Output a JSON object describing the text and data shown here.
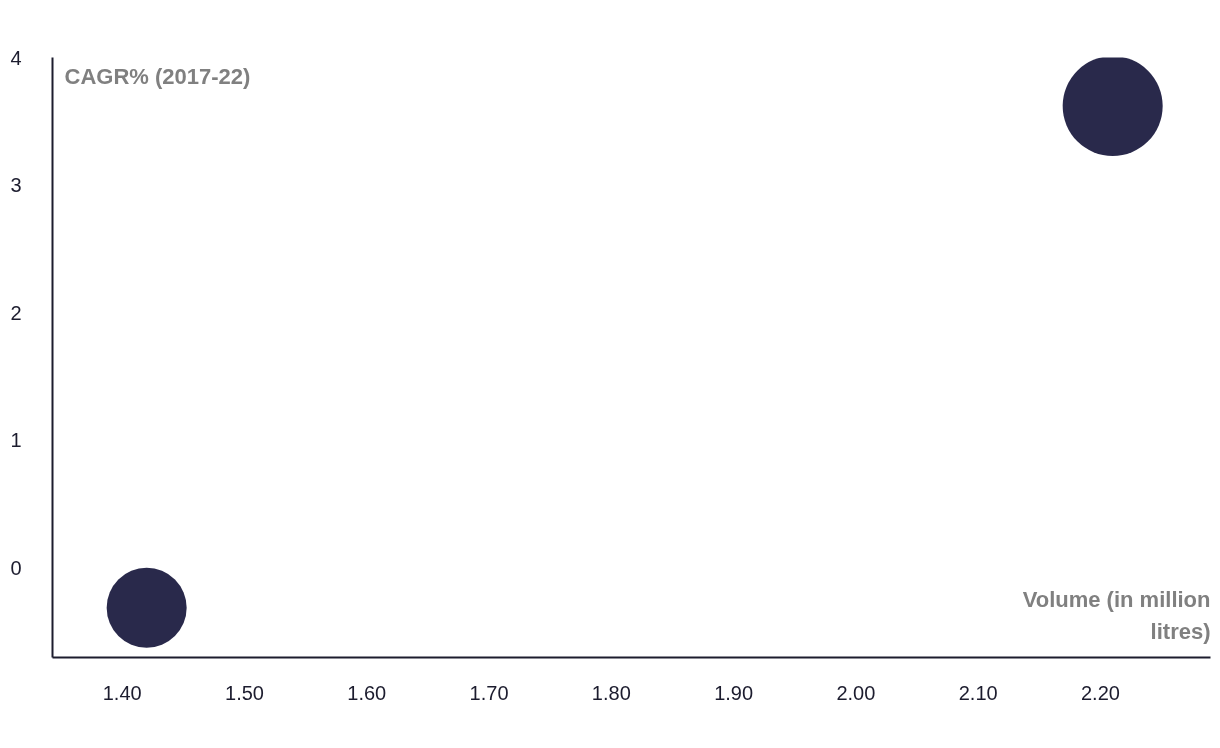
{
  "chart_data": {
    "type": "bubble",
    "xlabel": "Volume (in million litres)",
    "ylabel": "CAGR% (2017-22)",
    "x": [
      1.42,
      2.21
    ],
    "values": [
      -0.31,
      3.62
    ],
    "sizes": [
      0.64,
      1
    ],
    "color": "#29294b",
    "marker": "circle",
    "xlim": [
      1.343,
      2.29
    ],
    "ylim": [
      -0.7,
      4
    ],
    "xticks": [
      {
        "value": 1.4,
        "label": "1.40"
      },
      {
        "value": 1.5,
        "label": "1.50"
      },
      {
        "value": 1.6,
        "label": "1.60"
      },
      {
        "value": 1.7,
        "label": "1.70"
      },
      {
        "value": 1.8,
        "label": "1.80"
      },
      {
        "value": 1.9,
        "label": "1.90"
      },
      {
        "value": 2.0,
        "label": "2.00"
      },
      {
        "value": 2.1,
        "label": "2.10"
      },
      {
        "value": 2.2,
        "label": "2.20"
      }
    ],
    "yticks": [
      0,
      1,
      2,
      3,
      4
    ]
  }
}
